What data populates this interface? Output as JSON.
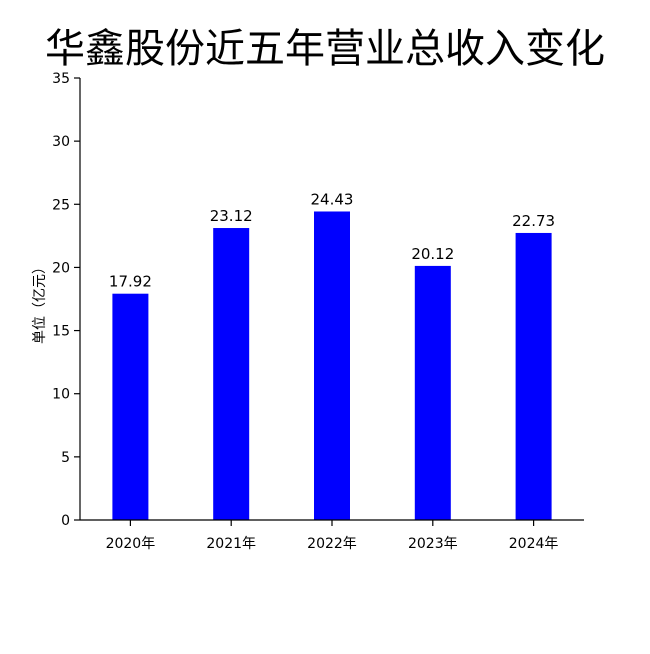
{
  "chart_data": {
    "type": "bar",
    "title": "华鑫股份近五年营业总收入变化",
    "xlabel": "",
    "ylabel": "单位（亿元）",
    "categories": [
      "2020年",
      "2021年",
      "2022年",
      "2023年",
      "2024年"
    ],
    "values": [
      17.92,
      23.12,
      24.43,
      20.12,
      22.73
    ],
    "value_labels": [
      "17.92",
      "23.12",
      "24.43",
      "20.12",
      "22.73"
    ],
    "ylim": [
      0,
      35
    ],
    "yticks": [
      0,
      5,
      10,
      15,
      20,
      25,
      30,
      35
    ],
    "grid": false,
    "legend": "none",
    "bar_color": "#0000ff"
  }
}
